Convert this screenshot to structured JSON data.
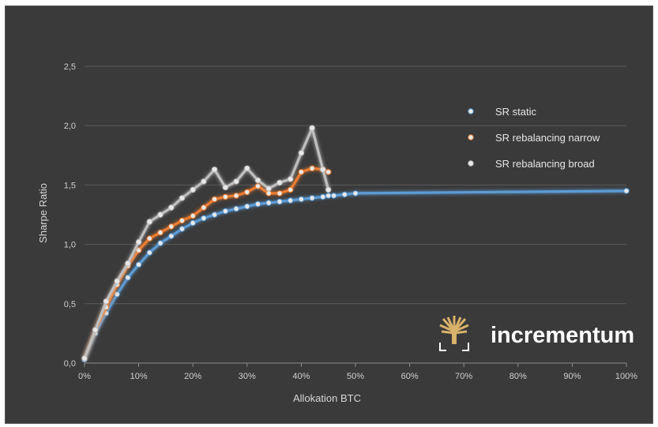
{
  "chart_data": {
    "type": "line",
    "xlabel": "Allokation BTC",
    "ylabel": "Sharpe Ratio",
    "xlim": [
      0,
      100
    ],
    "ylim": [
      0,
      2.5
    ],
    "x_ticks": [
      "0%",
      "10%",
      "20%",
      "30%",
      "40%",
      "50%",
      "60%",
      "70%",
      "80%",
      "90%",
      "100%"
    ],
    "y_ticks": [
      "0,0",
      "0,5",
      "1,0",
      "1,5",
      "2,0",
      "2,5"
    ],
    "grid": "horizontal",
    "legend_position": "top-right",
    "series": [
      {
        "name": "SR static",
        "color": "#5b9bd5",
        "points": [
          [
            0,
            0.03
          ],
          [
            2,
            0.25
          ],
          [
            4,
            0.42
          ],
          [
            6,
            0.58
          ],
          [
            8,
            0.72
          ],
          [
            10,
            0.83
          ],
          [
            12,
            0.93
          ],
          [
            14,
            1.01
          ],
          [
            16,
            1.07
          ],
          [
            18,
            1.13
          ],
          [
            20,
            1.18
          ],
          [
            22,
            1.22
          ],
          [
            24,
            1.25
          ],
          [
            26,
            1.28
          ],
          [
            28,
            1.3
          ],
          [
            30,
            1.32
          ],
          [
            32,
            1.34
          ],
          [
            34,
            1.35
          ],
          [
            36,
            1.36
          ],
          [
            38,
            1.37
          ],
          [
            40,
            1.38
          ],
          [
            42,
            1.39
          ],
          [
            44,
            1.4
          ],
          [
            45,
            1.41
          ],
          [
            46,
            1.41
          ],
          [
            48,
            1.42
          ],
          [
            50,
            1.43
          ],
          [
            100,
            1.45
          ]
        ]
      },
      {
        "name": "SR rebalancing narrow",
        "color": "#ed7d31",
        "points": [
          [
            0,
            0.04
          ],
          [
            2,
            0.28
          ],
          [
            4,
            0.47
          ],
          [
            6,
            0.66
          ],
          [
            8,
            0.82
          ],
          [
            10,
            0.95
          ],
          [
            12,
            1.05
          ],
          [
            14,
            1.1
          ],
          [
            16,
            1.15
          ],
          [
            18,
            1.2
          ],
          [
            20,
            1.24
          ],
          [
            22,
            1.31
          ],
          [
            24,
            1.38
          ],
          [
            26,
            1.4
          ],
          [
            28,
            1.41
          ],
          [
            30,
            1.44
          ],
          [
            32,
            1.49
          ],
          [
            34,
            1.43
          ],
          [
            36,
            1.43
          ],
          [
            38,
            1.46
          ],
          [
            40,
            1.61
          ],
          [
            42,
            1.64
          ],
          [
            44,
            1.63
          ],
          [
            45,
            1.61
          ]
        ]
      },
      {
        "name": "SR rebalancing broad",
        "color": "#bfbfbf",
        "points": [
          [
            0,
            0.04
          ],
          [
            2,
            0.28
          ],
          [
            4,
            0.52
          ],
          [
            6,
            0.69
          ],
          [
            8,
            0.84
          ],
          [
            10,
            1.02
          ],
          [
            12,
            1.19
          ],
          [
            14,
            1.25
          ],
          [
            16,
            1.31
          ],
          [
            18,
            1.39
          ],
          [
            20,
            1.46
          ],
          [
            22,
            1.53
          ],
          [
            24,
            1.63
          ],
          [
            26,
            1.48
          ],
          [
            28,
            1.53
          ],
          [
            30,
            1.64
          ],
          [
            32,
            1.54
          ],
          [
            34,
            1.47
          ],
          [
            36,
            1.52
          ],
          [
            38,
            1.55
          ],
          [
            40,
            1.77
          ],
          [
            42,
            1.98
          ],
          [
            44,
            1.63
          ],
          [
            45,
            1.46
          ]
        ]
      }
    ]
  },
  "branding": {
    "name": "incrementum",
    "logo_icon": "tree-logo-icon"
  }
}
